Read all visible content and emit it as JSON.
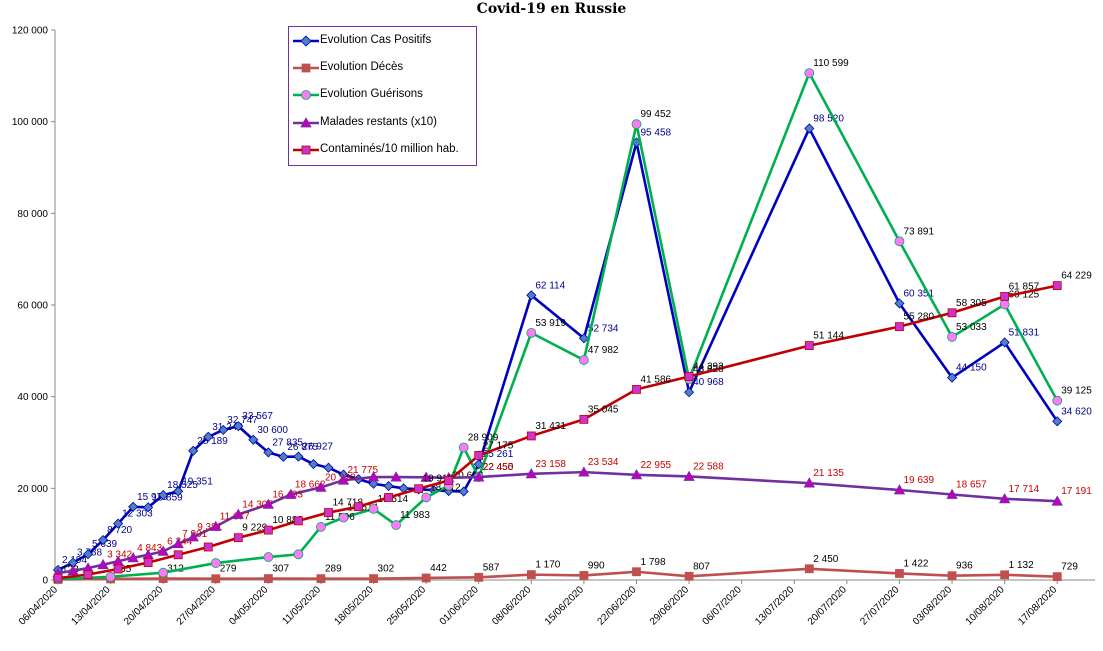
{
  "chart_data": {
    "type": "line",
    "title": "Covid-19 en Russie",
    "xlabel": "",
    "ylabel": "",
    "ylim": [
      0,
      120000
    ],
    "grid": false,
    "legend_position": "top-left",
    "y_tick_labels": [
      "0",
      "20 000",
      "40 000",
      "60 000",
      "80 000",
      "100 000",
      "120 000"
    ],
    "y_tick_values": [
      0,
      20000,
      40000,
      60000,
      80000,
      100000,
      120000
    ],
    "x_tick_labels": [
      "06/04/2020",
      "13/04/2020",
      "20/04/2020",
      "27/04/2020",
      "04/05/2020",
      "11/05/2020",
      "18/05/2020",
      "25/05/2020",
      "01/06/2020",
      "08/06/2020",
      "15/06/2020",
      "22/06/2020",
      "29/06/2020",
      "06/07/2020",
      "13/07/2020",
      "20/07/2020",
      "27/07/2020",
      "03/08/2020",
      "10/08/2020",
      "17/08/2020"
    ],
    "x_tick_days": [
      0,
      7,
      14,
      21,
      28,
      35,
      42,
      49,
      56,
      63,
      70,
      77,
      84,
      91,
      98,
      105,
      112,
      119,
      126,
      133
    ],
    "x_range_days": [
      0,
      136
    ],
    "series": [
      {
        "name": "Evolution Cas Positifs",
        "color": "#0000c0",
        "marker": "diamond",
        "marker_color": "#4f81bd",
        "label_color": "#00008b",
        "days": [
          0,
          2,
          4,
          6,
          8,
          10,
          12,
          14,
          16,
          18,
          20,
          22,
          24,
          26,
          28,
          30,
          32,
          34,
          36,
          38,
          40,
          42,
          44,
          46,
          48,
          50,
          52,
          54,
          56,
          63,
          70,
          77,
          84,
          100,
          112,
          119,
          126,
          133
        ],
        "values": [
          2194,
          3788,
          5639,
          8720,
          12303,
          15970,
          15859,
          18525,
          19351,
          28189,
          31242,
          32747,
          33567,
          30600,
          27835,
          26875,
          26927,
          25300,
          24500,
          23000,
          22000,
          21000,
          20500,
          20000,
          19800,
          19600,
          19400,
          19300,
          25261,
          62114,
          52734,
          95458,
          40968,
          98520,
          60351,
          44150,
          51831,
          34620
        ],
        "labels": [
          "2 194",
          "3 788",
          "5 639",
          "8 720",
          "12 303",
          "15 970",
          "15 859",
          "18 525",
          "19 351",
          "28 189",
          "31 242",
          "32 747",
          "33 567",
          "30 600",
          "27 835",
          "26 875",
          "26 927",
          "",
          "",
          "",
          "",
          "",
          "",
          "",
          "",
          "",
          "",
          "",
          "25 261",
          "62 114",
          "52 734",
          "95 458",
          "40 968",
          "98 520",
          "60 351",
          "44 150",
          "51 831",
          "34 620"
        ]
      },
      {
        "name": "Evolution Décès",
        "color": "#c0504d",
        "marker": "square",
        "marker_color": "#c0504d",
        "label_color": "#000000",
        "days": [
          0,
          7,
          14,
          21,
          28,
          35,
          42,
          49,
          56,
          63,
          70,
          77,
          84,
          100,
          112,
          119,
          126,
          133
        ],
        "values": [
          123,
          235,
          312,
          279,
          307,
          289,
          302,
          442,
          587,
          1170,
          990,
          1798,
          807,
          2450,
          1422,
          936,
          1132,
          729
        ],
        "labels": [
          "123",
          "235",
          "312",
          "279",
          "307",
          "289",
          "302",
          "442",
          "587",
          "1 170",
          "990",
          "1 798",
          "807",
          "2 450",
          "1 422",
          "936",
          "1 132",
          "729"
        ]
      },
      {
        "name": "Evolution Guérisons",
        "color": "#00b050",
        "marker": "circle",
        "marker_color": "#ff77ff",
        "label_color": "#000000",
        "days": [
          0,
          7,
          14,
          21,
          28,
          32,
          35,
          38,
          42,
          45,
          49,
          52,
          54,
          56,
          63,
          70,
          77,
          84,
          100,
          112,
          119,
          126,
          133
        ],
        "values": [
          150,
          700,
          1600,
          3700,
          5000,
          5600,
          11596,
          13614,
          15514,
          11983,
          18012,
          20618,
          28909,
          22450,
          53919,
          47982,
          99452,
          43828,
          110599,
          73891,
          53033,
          60125,
          39125
        ],
        "labels": [
          "",
          "",
          "",
          "",
          "",
          "",
          "11 596",
          "13 614",
          "15 514",
          "11 983",
          "18 012",
          "20 618",
          "28 909",
          "22 450",
          "53 919",
          "47 982",
          "99 452",
          "43 828",
          "110 599",
          "73 891",
          "53 033",
          "60 125",
          "39 125"
        ]
      },
      {
        "name": "Malades restants (x10)",
        "color": "#7030a0",
        "marker": "triangle",
        "marker_color": "#c000c0",
        "label_color": "#cc0000",
        "days": [
          0,
          2,
          4,
          6,
          8,
          10,
          12,
          14,
          16,
          18,
          21,
          24,
          28,
          31,
          35,
          38,
          42,
          45,
          49,
          52,
          56,
          63,
          70,
          77,
          84,
          100,
          112,
          119,
          126,
          133
        ],
        "values": [
          1500,
          2000,
          2600,
          3342,
          4100,
          4843,
          5500,
          6244,
          7901,
          9381,
          11677,
          14307,
          16493,
          18662,
          20220,
          21775,
          22475,
          22450,
          22400,
          22300,
          22455,
          23158,
          23534,
          22955,
          22588,
          21135,
          19639,
          18657,
          17714,
          17191
        ],
        "labels": [
          "",
          "",
          "",
          "3 342",
          "",
          "4 843",
          "",
          "6 244",
          "7 901",
          "9 381",
          "11 677",
          "14 307",
          "16 493",
          "18 662",
          "20 220",
          "21 775",
          "",
          "",
          "",
          "",
          "22 455",
          "23 158",
          "23 534",
          "22 955",
          "22 588",
          "21 135",
          "19 639",
          "18 657",
          "17 714",
          "17 191"
        ]
      },
      {
        "name": "Contaminés/10 million hab.",
        "color": "#c00000",
        "marker": "square",
        "marker_color": "#cc33cc",
        "label_color": "#000000",
        "days": [
          0,
          4,
          8,
          12,
          16,
          20,
          24,
          28,
          32,
          36,
          40,
          44,
          48,
          52,
          56,
          63,
          70,
          77,
          84,
          100,
          112,
          119,
          126,
          133
        ],
        "values": [
          400,
          1200,
          2400,
          3800,
          5500,
          7200,
          9229,
          10888,
          12900,
          14718,
          16000,
          18012,
          19918,
          21700,
          27175,
          31431,
          35045,
          41586,
          44393,
          51144,
          55280,
          58305,
          61857,
          64229
        ],
        "labels": [
          "",
          "",
          "",
          "",
          "",
          "",
          "9 229",
          "10 888",
          "",
          "14 718",
          "",
          "",
          "19 918",
          "",
          "27 175",
          "31 431",
          "35 045",
          "41 586",
          "44 393",
          "51 144",
          "55 280",
          "58 305",
          "61 857",
          "64 229"
        ]
      }
    ]
  }
}
